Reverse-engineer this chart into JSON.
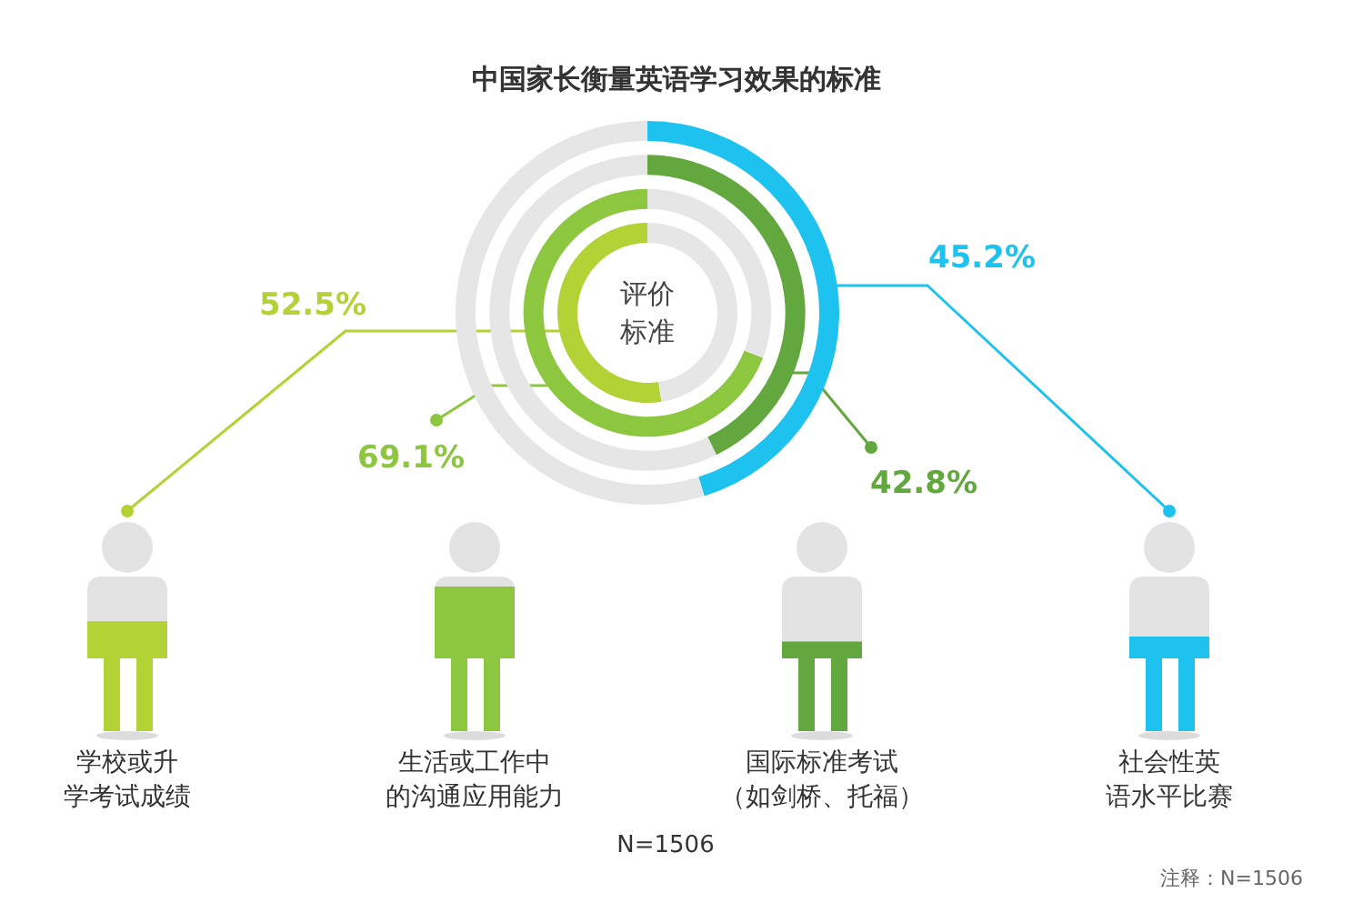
{
  "chart_data": [
    {
      "type": "donut",
      "title": "中国家长衡量英语学习效果的标准",
      "categories": [
        null,
        null
      ],
      "values": [
        52.5,
        47.5
      ],
      "colors": [
        "#b2d235",
        "#e6e6e6"
      ],
      "value_labels": [
        "52.5%",
        null
      ],
      "annotations": [
        "学校或升学考试成绩",
        "评价标准",
        "N=1506",
        "注释：N=1506"
      ]
    },
    {
      "type": "donut",
      "categories": [
        null,
        null
      ],
      "values": [
        69.1,
        30.9
      ],
      "colors": [
        "#8dc63f",
        "#e6e6e6"
      ],
      "value_labels": [
        "69.1%",
        null
      ],
      "annotations": [
        "生活或工作中的沟通应用能力"
      ]
    },
    {
      "type": "donut",
      "categories": [
        null,
        null
      ],
      "values": [
        42.8,
        57.2
      ],
      "colors": [
        "#62a83e",
        "#e6e6e6"
      ],
      "value_labels": [
        "42.8%",
        null
      ],
      "annotations": [
        "国际标准考试（如剑桥、托福）"
      ]
    },
    {
      "type": "donut",
      "categories": [
        null,
        null
      ],
      "values": [
        45.2,
        54.8
      ],
      "colors": [
        "#1ec2ef",
        "#e6e6e6"
      ],
      "value_labels": [
        "45.2%",
        null
      ],
      "annotations": [
        "社会性英语水平比赛"
      ]
    }
  ]
}
